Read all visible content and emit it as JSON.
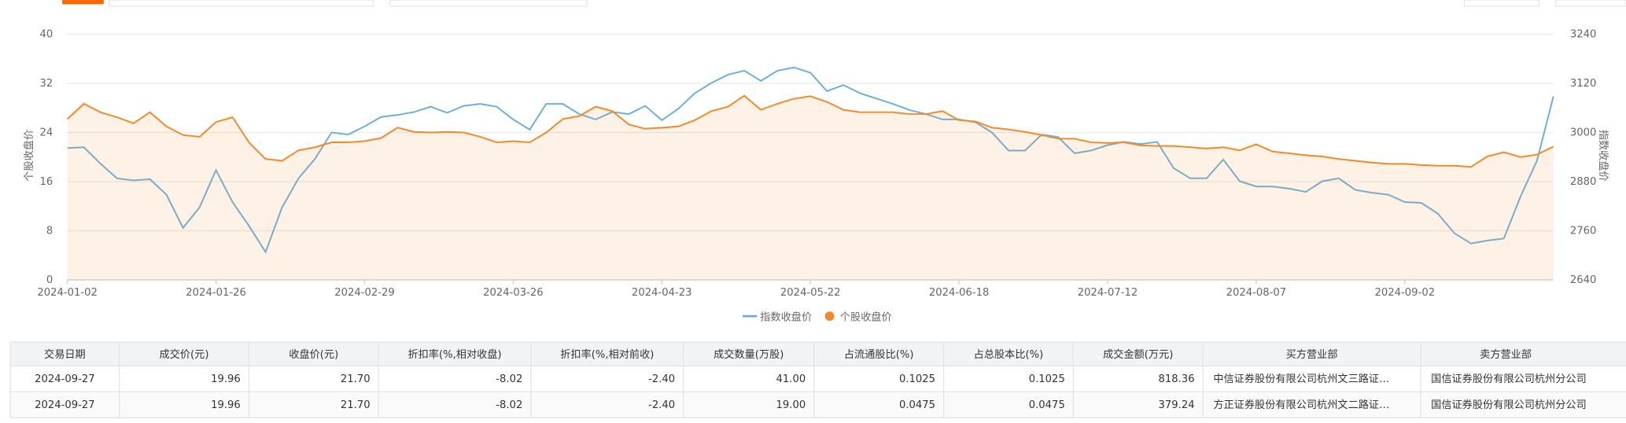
{
  "chart_data": {
    "type": "line",
    "categories": [
      "2024-01-02",
      null,
      null,
      null,
      null,
      null,
      null,
      null,
      null,
      "2024-01-26",
      null,
      null,
      null,
      null,
      null,
      null,
      null,
      null,
      "2024-02-29",
      null,
      null,
      null,
      null,
      null,
      null,
      null,
      null,
      "2024-03-26",
      null,
      null,
      null,
      null,
      null,
      null,
      null,
      null,
      "2024-04-23",
      null,
      null,
      null,
      null,
      null,
      null,
      null,
      null,
      "2024-05-22",
      null,
      null,
      null,
      null,
      null,
      null,
      null,
      null,
      "2024-06-18",
      null,
      null,
      null,
      null,
      null,
      null,
      null,
      null,
      "2024-07-12",
      null,
      null,
      null,
      null,
      null,
      null,
      null,
      null,
      "2024-08-07",
      null,
      null,
      null,
      null,
      null,
      null,
      null,
      null,
      "2024-09-02",
      null,
      null,
      null,
      null,
      null,
      null,
      null,
      null,
      null
    ],
    "ylabel": "个股收盘价",
    "y2label": "指数收盘价",
    "ylim": [
      0,
      40
    ],
    "yticks": [
      0,
      8,
      16,
      24,
      32,
      40
    ],
    "y2lim": [
      2640,
      3240
    ],
    "y2ticks": [
      2640,
      2760,
      2880,
      3000,
      3120,
      3240
    ],
    "grid": true,
    "legend": "bottom",
    "series": [
      {
        "name": "指数收盘价",
        "color": "#6ab0de",
        "axis": "y2",
        "values": [
          2962,
          2964,
          2924,
          2888,
          2883,
          2886,
          2848,
          2767,
          2817,
          2908,
          2830,
          2772,
          2708,
          2817,
          2888,
          2936,
          3000,
          2995,
          3015,
          3038,
          3043,
          3050,
          3063,
          3048,
          3065,
          3070,
          3063,
          3032,
          3007,
          3070,
          3070,
          3045,
          3032,
          3050,
          3045,
          3065,
          3030,
          3058,
          3096,
          3121,
          3141,
          3151,
          3126,
          3151,
          3159,
          3146,
          3101,
          3116,
          3096,
          3083,
          3070,
          3055,
          3045,
          3032,
          3032,
          3025,
          3000,
          2956,
          2956,
          2995,
          2989,
          2949,
          2956,
          2969,
          2977,
          2972,
          2977,
          2913,
          2888,
          2888,
          2934,
          2881,
          2868,
          2868,
          2863,
          2855,
          2881,
          2888,
          2860,
          2853,
          2848,
          2830,
          2828,
          2802,
          2754,
          2729,
          2736,
          2741,
          2843,
          2931,
          3088
        ]
      },
      {
        "name": "个股收盘价",
        "color": "#f5892a",
        "area": true,
        "values": [
          26.2,
          28.7,
          27.3,
          26.5,
          25.5,
          27.3,
          25,
          23.6,
          23.3,
          25.7,
          26.5,
          22.4,
          19.7,
          19.4,
          21.1,
          21.6,
          22.4,
          22.4,
          22.6,
          23.1,
          24.8,
          24.1,
          24,
          24.1,
          24,
          23.3,
          22.4,
          22.6,
          22.4,
          24,
          26.2,
          26.7,
          28.2,
          27.5,
          25.3,
          24.6,
          24.8,
          25,
          26,
          27.5,
          28.2,
          30,
          27.7,
          28.7,
          29.5,
          29.9,
          29,
          27.7,
          27.3,
          27.3,
          27.3,
          27,
          27,
          27.5,
          26,
          25.8,
          24.8,
          24.5,
          24.1,
          23.6,
          23,
          23,
          22.4,
          22.3,
          22.4,
          21.9,
          21.8,
          21.8,
          21.6,
          21.4,
          21.6,
          21.1,
          22.1,
          20.9,
          20.6,
          20.3,
          20.1,
          19.7,
          19.4,
          19.1,
          18.9,
          18.9,
          18.7,
          18.6,
          18.6,
          18.4,
          20.1,
          20.8,
          20,
          20.4,
          21.7
        ]
      }
    ]
  },
  "table": {
    "headers": [
      "交易日期",
      "成交价(元)",
      "收盘价(元)",
      "折扣率(%,相对收盘)",
      "折扣率(%,相对前收)",
      "成交数量(万股)",
      "占流通股比(%)",
      "占总股本比(%)",
      "成交金额(万元)",
      "买方营业部",
      "卖方营业部"
    ],
    "rows": [
      [
        "2024-09-27",
        "19.96",
        "21.70",
        "-8.02",
        "-2.40",
        "41.00",
        "0.1025",
        "0.1025",
        "818.36",
        "中信证券股份有限公司杭州文三路证…",
        "国信证券股份有限公司杭州分公司"
      ],
      [
        "2024-09-27",
        "19.96",
        "21.70",
        "-8.02",
        "-2.40",
        "19.00",
        "0.0475",
        "0.0475",
        "379.24",
        "方正证券股份有限公司杭州文二路证…",
        "国信证券股份有限公司杭州分公司"
      ]
    ]
  }
}
